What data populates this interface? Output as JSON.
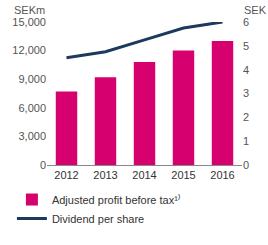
{
  "chart_data": {
    "type": "bar",
    "categories": [
      "2012",
      "2013",
      "2014",
      "2015",
      "2016"
    ],
    "ylabel": "SEKm",
    "y2label": "SEK",
    "series": [
      {
        "name": "Adjusted profit before tax¹⁾",
        "type": "bar",
        "color": "#d6006e",
        "values": [
          7700,
          9200,
          10800,
          12000,
          13000
        ]
      },
      {
        "name": "Dividend per share",
        "type": "line",
        "color": "#1b3a5e",
        "axis": "y2",
        "values": [
          4.5,
          4.75,
          5.25,
          5.75,
          6.0
        ]
      }
    ],
    "ylim": [
      0,
      15000
    ],
    "yticks": [
      0,
      {
        "value": 3000,
        "label": "3,000"
      },
      {
        "value": 6000,
        "label": "6,000"
      },
      {
        "value": 9000,
        "label": "9,000"
      },
      {
        "value": 12000,
        "label": "12,000"
      },
      {
        "value": 15000,
        "label": "15,000"
      }
    ],
    "y2lim": [
      0,
      6
    ],
    "y2ticks": [
      0,
      1,
      2,
      3,
      4,
      5,
      6
    ],
    "grid": false,
    "legend": "bottom"
  }
}
